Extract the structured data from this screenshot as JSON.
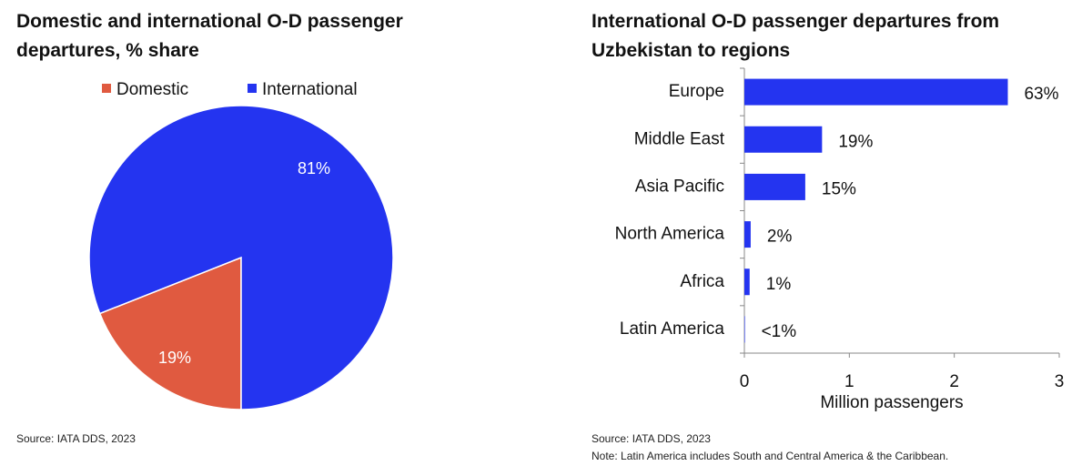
{
  "chart_data": [
    {
      "type": "pie",
      "title": "Domestic and international O-D passenger departures, % share",
      "legend_position": "top",
      "slices": [
        {
          "name": "Domestic",
          "value": 19,
          "label": "19%",
          "color": "#e05a40"
        },
        {
          "name": "International",
          "value": 81,
          "label": "81%",
          "color": "#2434f0"
        }
      ],
      "source": "Source: IATA DDS, 2023"
    },
    {
      "type": "bar",
      "orientation": "horizontal",
      "title": "International O-D passenger departures from Uzbekistan to regions",
      "categories": [
        "Europe",
        "Middle East",
        "Asia Pacific",
        "North America",
        "Africa",
        "Latin America"
      ],
      "values": [
        2.51,
        0.74,
        0.58,
        0.06,
        0.05,
        0.005
      ],
      "data_labels": [
        "63%",
        "19%",
        "15%",
        "2%",
        "1%",
        "<1%"
      ],
      "xlabel": "Million passengers",
      "xlim": [
        0,
        3
      ],
      "xticks": [
        "0",
        "1",
        "2",
        "3"
      ],
      "grid": false,
      "color": "#2434f0",
      "source": "Source: IATA DDS, 2023",
      "note": "Note: Latin America includes South and Central America & the Caribbean."
    }
  ]
}
